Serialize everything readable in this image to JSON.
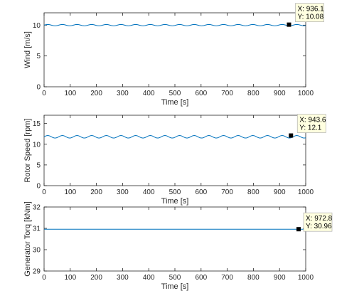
{
  "chart_data": [
    {
      "type": "line",
      "xlabel": "Time [s]",
      "ylabel": "Wind [m/s]",
      "xlim": [
        0,
        1000
      ],
      "ylim": [
        0,
        12
      ],
      "xticks": [
        0,
        100,
        200,
        300,
        400,
        500,
        600,
        700,
        800,
        900,
        1000
      ],
      "yticks": [
        0,
        5,
        10
      ],
      "grid": false,
      "series_color": "#0072BD",
      "signal": {
        "mean": 10.0,
        "amplitude": 0.1,
        "period_s": 56
      },
      "datatip": {
        "x": 936.1,
        "y": 10.08,
        "x_text": "X: 936.1",
        "y_text": "Y: 10.08"
      }
    },
    {
      "type": "line",
      "xlabel": "Time [s]",
      "ylabel": "Rotor Speed [rpm]",
      "xlim": [
        0,
        1000
      ],
      "ylim": [
        0,
        17
      ],
      "xticks": [
        0,
        100,
        200,
        300,
        400,
        500,
        600,
        700,
        800,
        900,
        1000
      ],
      "yticks": [
        0,
        5,
        10,
        15
      ],
      "grid": false,
      "series_color": "#0072BD",
      "signal": {
        "mean": 11.8,
        "amplitude": 0.3,
        "period_s": 56
      },
      "datatip": {
        "x": 943.6,
        "y": 12.1,
        "x_text": "X: 943.6",
        "y_text": "Y: 12.1"
      }
    },
    {
      "type": "line",
      "xlabel": "Time [s]",
      "ylabel": "Generator Torq [kNm]",
      "xlim": [
        0,
        1000
      ],
      "ylim": [
        29,
        32
      ],
      "xticks": [
        0,
        100,
        200,
        300,
        400,
        500,
        600,
        700,
        800,
        900,
        1000
      ],
      "yticks": [
        29,
        30,
        31,
        32
      ],
      "grid": false,
      "series_color": "#0072BD",
      "signal": {
        "mean": 30.96,
        "amplitude": 0,
        "period_s": 56
      },
      "datatip": {
        "x": 972.8,
        "y": 30.96,
        "x_text": "X: 972.8",
        "y_text": "Y: 30.96"
      }
    }
  ],
  "colors": {
    "axis": "#262626",
    "line": "#0072BD",
    "datatip_bg": "#FFFFE0",
    "marker": "#000000"
  }
}
